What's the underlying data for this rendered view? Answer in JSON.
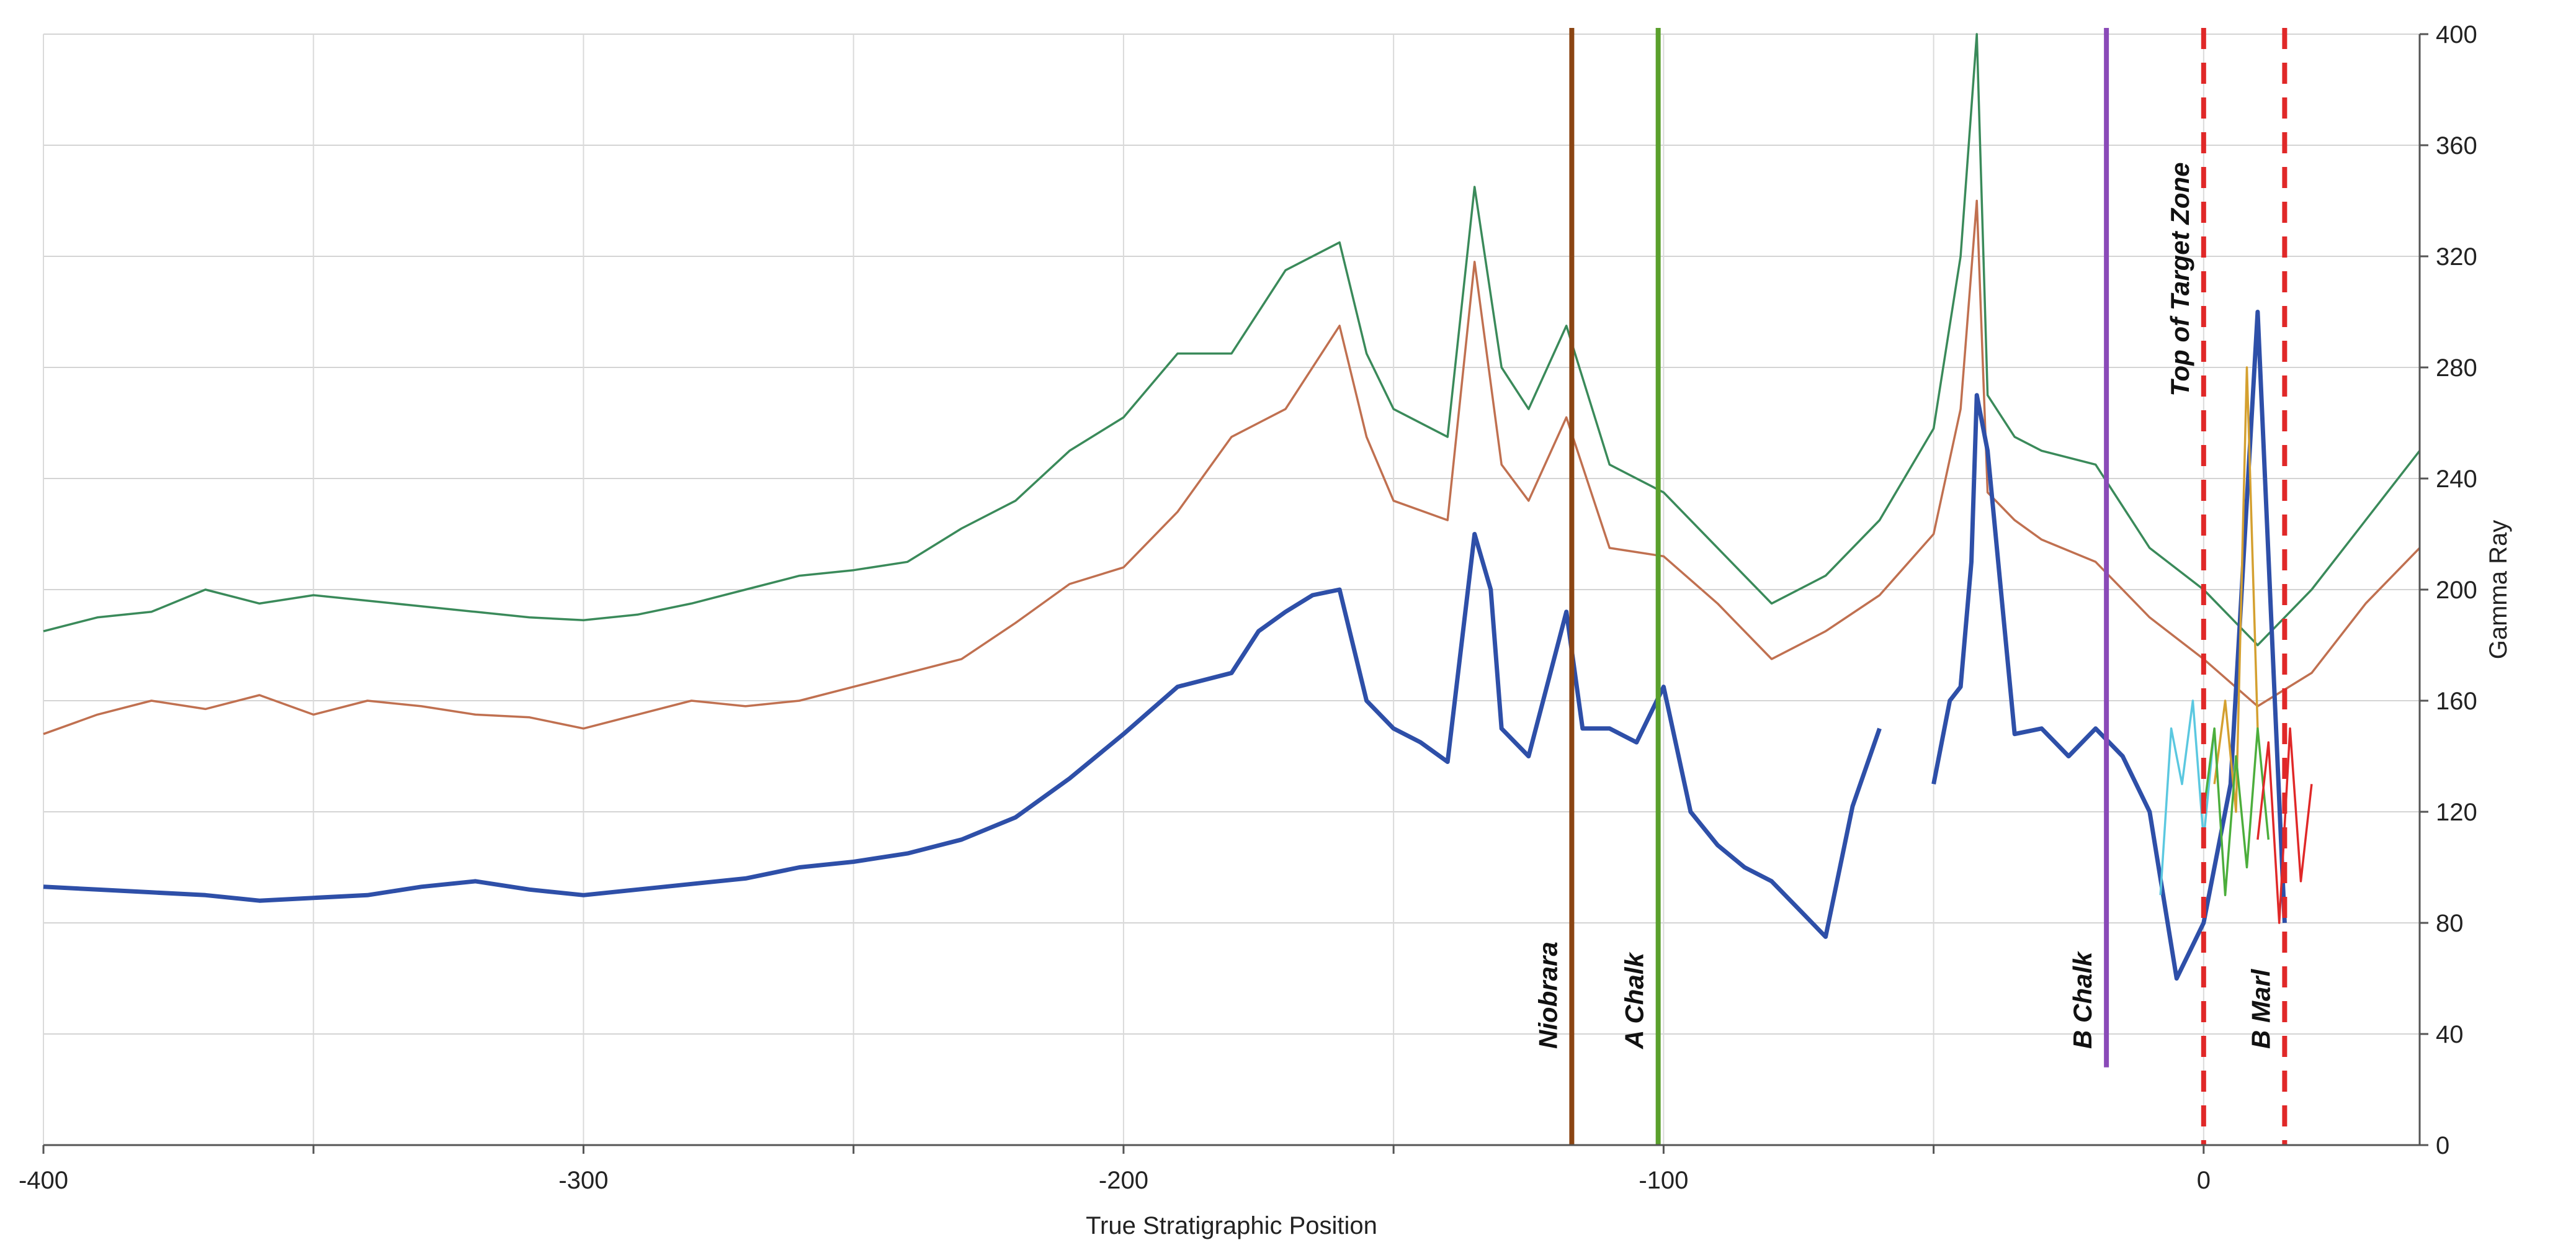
{
  "chart_data": {
    "type": "line",
    "title": "",
    "xlabel": "True Stratigraphic Position",
    "ylabel": "Gamma Ray",
    "xlim": [
      -400,
      40
    ],
    "ylim": [
      0,
      400
    ],
    "x_ticks": [
      -400,
      -300,
      -200,
      -100,
      0
    ],
    "y_ticks": [
      0,
      40,
      80,
      120,
      160,
      200,
      240,
      280,
      320,
      360,
      400
    ],
    "grid": true,
    "legend": "none",
    "series": [
      {
        "color": "#3a8a5a",
        "x": [
          -400,
          -390,
          -380,
          -370,
          -360,
          -350,
          -340,
          -330,
          -320,
          -310,
          -300,
          -290,
          -280,
          -270,
          -260,
          -250,
          -240,
          -230,
          -220,
          -210,
          -200,
          -190,
          -180,
          -170,
          -160,
          -155,
          -150,
          -140,
          -135,
          -130,
          -125,
          -118,
          -110,
          -100,
          -90,
          -80,
          -70,
          -60,
          -50,
          -45,
          -42,
          -40,
          -35,
          -30,
          -20,
          -10,
          0,
          10,
          20,
          30,
          40
        ],
        "y": [
          185,
          190,
          192,
          200,
          195,
          198,
          196,
          194,
          192,
          190,
          189,
          191,
          195,
          200,
          205,
          207,
          210,
          222,
          232,
          250,
          262,
          285,
          285,
          315,
          325,
          285,
          265,
          255,
          345,
          280,
          265,
          295,
          245,
          235,
          215,
          195,
          205,
          225,
          258,
          320,
          400,
          270,
          255,
          250,
          245,
          215,
          200,
          180,
          200,
          225,
          250
        ]
      },
      {
        "color": "#c07050",
        "x": [
          -400,
          -390,
          -380,
          -370,
          -360,
          -350,
          -340,
          -330,
          -320,
          -310,
          -300,
          -290,
          -280,
          -270,
          -260,
          -250,
          -240,
          -230,
          -220,
          -210,
          -200,
          -190,
          -180,
          -170,
          -160,
          -155,
          -150,
          -140,
          -135,
          -130,
          -125,
          -118,
          -110,
          -100,
          -90,
          -80,
          -70,
          -60,
          -50,
          -45,
          -42,
          -40,
          -35,
          -30,
          -20,
          -10,
          0,
          10,
          20,
          30,
          40
        ],
        "y": [
          148,
          155,
          160,
          157,
          162,
          155,
          160,
          158,
          155,
          154,
          150,
          155,
          160,
          158,
          160,
          165,
          170,
          175,
          188,
          202,
          208,
          228,
          255,
          265,
          295,
          255,
          232,
          225,
          318,
          245,
          232,
          262,
          215,
          212,
          195,
          175,
          185,
          198,
          220,
          265,
          340,
          235,
          225,
          218,
          210,
          190,
          175,
          158,
          170,
          195,
          215
        ]
      },
      {
        "color": "#2e4fa8",
        "x": [
          -400,
          -390,
          -380,
          -370,
          -360,
          -350,
          -340,
          -330,
          -320,
          -310,
          -300,
          -290,
          -280,
          -270,
          -260,
          -250,
          -240,
          -230,
          -220,
          -210,
          -200,
          -190,
          -180,
          -175,
          -170,
          -165,
          -160,
          -155,
          -150,
          -145,
          -140,
          -135,
          -132,
          -130,
          -125,
          -118,
          -115,
          -110,
          -105,
          -100,
          -95,
          -90,
          -85,
          -80,
          -75,
          -70,
          -65,
          -60
        ],
        "y": [
          93,
          92,
          91,
          90,
          88,
          89,
          90,
          93,
          95,
          92,
          90,
          92,
          94,
          96,
          100,
          102,
          105,
          110,
          118,
          132,
          148,
          165,
          170,
          185,
          192,
          198,
          200,
          160,
          150,
          145,
          138,
          220,
          200,
          150,
          140,
          192,
          150,
          150,
          145,
          165,
          120,
          108,
          100,
          95,
          85,
          75,
          122,
          150
        ]
      },
      {
        "color": "#2e4fa8",
        "x": [
          -50,
          -47,
          -45,
          -43,
          -42,
          -40,
          -35,
          -30,
          -25,
          -20,
          -15,
          -10,
          -5,
          0,
          5,
          10,
          15
        ],
        "y": [
          130,
          160,
          165,
          210,
          270,
          250,
          148,
          150,
          140,
          150,
          140,
          120,
          60,
          80,
          130,
          300,
          80
        ]
      },
      {
        "color": "#5bc8e0",
        "x": [
          -8,
          -6,
          -4,
          -2,
          0,
          2
        ],
        "y": [
          90,
          150,
          130,
          160,
          110,
          150
        ]
      },
      {
        "color": "#d4a030",
        "x": [
          2,
          4,
          6,
          8,
          10
        ],
        "y": [
          130,
          160,
          120,
          280,
          150
        ]
      },
      {
        "color": "#4cae3c",
        "x": [
          0,
          2,
          4,
          6,
          8,
          10,
          12
        ],
        "y": [
          120,
          150,
          90,
          140,
          100,
          150,
          110
        ]
      },
      {
        "color": "#e02828",
        "x": [
          10,
          12,
          14,
          16,
          18,
          20
        ],
        "y": [
          110,
          145,
          80,
          150,
          95,
          130
        ]
      }
    ],
    "markers": [
      {
        "x": -117,
        "label": "Niobrara",
        "color": "#8b4513",
        "style": "solid",
        "y_bottom": 0
      },
      {
        "x": -101,
        "label": "A Chalk",
        "color": "#5aa02c",
        "style": "solid",
        "y_bottom": 0
      },
      {
        "x": -18,
        "label": "B Chalk",
        "color": "#8a4ab8",
        "style": "solid",
        "y_bottom": 28
      },
      {
        "x": 0,
        "label": "Top of Target Zone",
        "color": "#e02828",
        "style": "dashed",
        "y_bottom": 0
      },
      {
        "x": 15,
        "label": "B Marl",
        "color": "#e02828",
        "style": "dashed",
        "y_bottom": 0
      }
    ]
  }
}
